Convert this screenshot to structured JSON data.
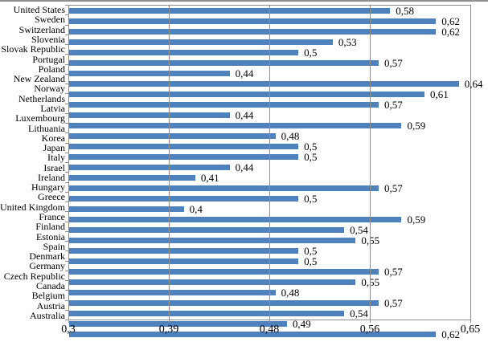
{
  "chart_data": {
    "type": "bar",
    "orientation": "horizontal",
    "title": "",
    "xlabel": "",
    "ylabel": "",
    "xlim": [
      0.3,
      0.65
    ],
    "grid": true,
    "legend": false,
    "decimal_separator": ",",
    "bar_color": "#4F81BD",
    "axis_color": "#8e8e8e",
    "xtick_labels": [
      "0,3",
      "0,39",
      "0,48",
      "0,56",
      "0,65"
    ],
    "items": [
      {
        "country": "United States",
        "value": 0.58,
        "label": "0,58"
      },
      {
        "country": "Sweden",
        "value": 0.62,
        "label": "0,62"
      },
      {
        "country": "Switzerland",
        "value": 0.62,
        "label": "0,62"
      },
      {
        "country": "Slovenia",
        "value": 0.53,
        "label": "0,53"
      },
      {
        "country": "Slovak Republic",
        "value": 0.5,
        "label": "0,5"
      },
      {
        "country": "Portugal",
        "value": 0.57,
        "label": "0,57"
      },
      {
        "country": "Poland",
        "value": 0.44,
        "label": "0,44"
      },
      {
        "country": "New Zealand",
        "value": 0.64,
        "label": "0,64"
      },
      {
        "country": "Norway",
        "value": 0.61,
        "label": "0,61"
      },
      {
        "country": "Netherlands",
        "value": 0.57,
        "label": "0,57"
      },
      {
        "country": "Latvia",
        "value": 0.44,
        "label": "0,44"
      },
      {
        "country": "Luxembourg",
        "value": 0.59,
        "label": "0,59"
      },
      {
        "country": "Lithuania",
        "value": 0.48,
        "label": "0,48"
      },
      {
        "country": "Korea",
        "value": 0.5,
        "label": "0,5"
      },
      {
        "country": "Japan",
        "value": 0.5,
        "label": "0,5"
      },
      {
        "country": "Italy",
        "value": 0.44,
        "label": "0,44"
      },
      {
        "country": "Israel",
        "value": 0.41,
        "label": "0,41"
      },
      {
        "country": "Ireland",
        "value": 0.57,
        "label": "0,57"
      },
      {
        "country": "Hungary",
        "value": 0.5,
        "label": "0,5"
      },
      {
        "country": "Greece",
        "value": 0.4,
        "label": "0,4"
      },
      {
        "country": "United Kingdom",
        "value": 0.59,
        "label": "0,59"
      },
      {
        "country": "France",
        "value": 0.54,
        "label": "0,54"
      },
      {
        "country": "Finland",
        "value": 0.55,
        "label": "0,55"
      },
      {
        "country": "Estonia",
        "value": 0.5,
        "label": "0,5"
      },
      {
        "country": "Spain",
        "value": 0.5,
        "label": "0,5"
      },
      {
        "country": "Denmark",
        "value": 0.57,
        "label": "0,57"
      },
      {
        "country": "Germany",
        "value": 0.55,
        "label": "0,55"
      },
      {
        "country": "Czech Republic",
        "value": 0.48,
        "label": "0,48"
      },
      {
        "country": "Canada",
        "value": 0.57,
        "label": "0,57"
      },
      {
        "country": "Belgium",
        "value": 0.54,
        "label": "0,54"
      },
      {
        "country": "Austria",
        "value": 0.49,
        "label": "0,49"
      },
      {
        "country": "Australia",
        "value": 0.62,
        "label": "0,62"
      }
    ]
  }
}
